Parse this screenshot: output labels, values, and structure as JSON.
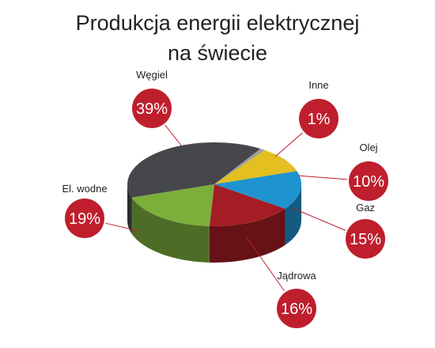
{
  "chart_data": {
    "type": "pie",
    "title": [
      "Produkcja energii elektrycznej",
      "na świecie"
    ],
    "slices": [
      {
        "label": "Inne",
        "value": 1,
        "display": "1%",
        "color": "#a0a0a0"
      },
      {
        "label": "Olej",
        "value": 10,
        "display": "10%",
        "color": "#e3bf20"
      },
      {
        "label": "Gaz",
        "value": 15,
        "display": "15%",
        "color": "#1f93cf"
      },
      {
        "label": "Jądrowa",
        "value": 16,
        "display": "16%",
        "color": "#a51d24"
      },
      {
        "label": "El. wodne",
        "value": 19,
        "display": "19%",
        "color": "#7cae3c"
      },
      {
        "label": "Węgiel",
        "value": 39,
        "display": "39%",
        "color": "#45474a"
      }
    ],
    "badge_color": "#bf1e2d",
    "three_d": true
  }
}
